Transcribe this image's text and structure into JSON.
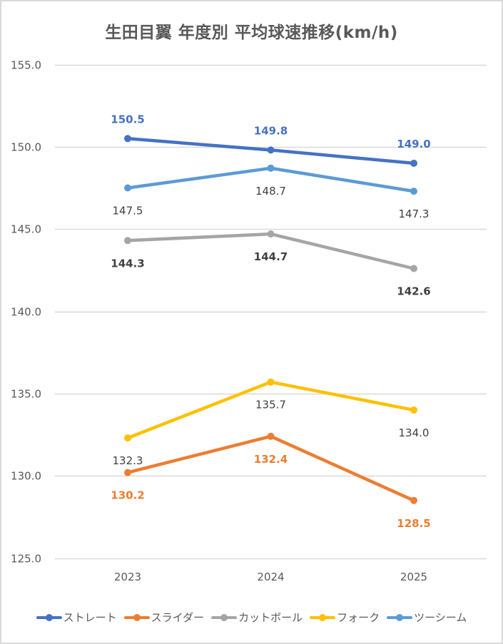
{
  "chart_data": {
    "type": "line",
    "title": "生田目翼 年度別 平均球速推移(km/h)",
    "xlabel": "",
    "ylabel": "",
    "categories": [
      "2023",
      "2024",
      "2025"
    ],
    "ylim": [
      125.0,
      155.0
    ],
    "yticks": [
      "125.0",
      "130.0",
      "135.0",
      "140.0",
      "145.0",
      "150.0",
      "155.0"
    ],
    "ytick_values": [
      125,
      130,
      135,
      140,
      145,
      150,
      155
    ],
    "grid": true,
    "legend_position": "bottom",
    "series": [
      {
        "name": "ストレート",
        "color": "#4472c4",
        "values": [
          150.5,
          149.8,
          149.0
        ],
        "labels": [
          "150.5",
          "149.8",
          "149.0"
        ],
        "label_color": "#4472c4",
        "label_pos": [
          "above",
          "above",
          "above"
        ],
        "label_bold": true
      },
      {
        "name": "スライダー",
        "color": "#ed7d31",
        "values": [
          130.2,
          132.4,
          128.5
        ],
        "labels": [
          "130.2",
          "132.4",
          "128.5"
        ],
        "label_color": "#ed7d31",
        "label_pos": [
          "below",
          "below",
          "below"
        ],
        "label_bold": true
      },
      {
        "name": "カットボール",
        "color": "#a5a5a5",
        "values": [
          144.3,
          144.7,
          142.6
        ],
        "labels": [
          "144.3",
          "144.7",
          "142.6"
        ],
        "label_color": "#404040",
        "label_pos": [
          "below",
          "below",
          "below"
        ],
        "label_bold": true
      },
      {
        "name": "フォーク",
        "color": "#ffc000",
        "values": [
          132.3,
          135.7,
          134.0
        ],
        "labels": [
          "132.3",
          "135.7",
          "134.0"
        ],
        "label_color": "#404040",
        "label_pos": [
          "below",
          "below",
          "below"
        ],
        "label_bold": false
      },
      {
        "name": "ツーシーム",
        "color": "#5b9bd5",
        "values": [
          147.5,
          148.7,
          147.3
        ],
        "labels": [
          "147.5",
          "148.7",
          "147.3"
        ],
        "label_color": "#404040",
        "label_pos": [
          "below",
          "below",
          "below"
        ],
        "label_bold": false
      }
    ]
  }
}
